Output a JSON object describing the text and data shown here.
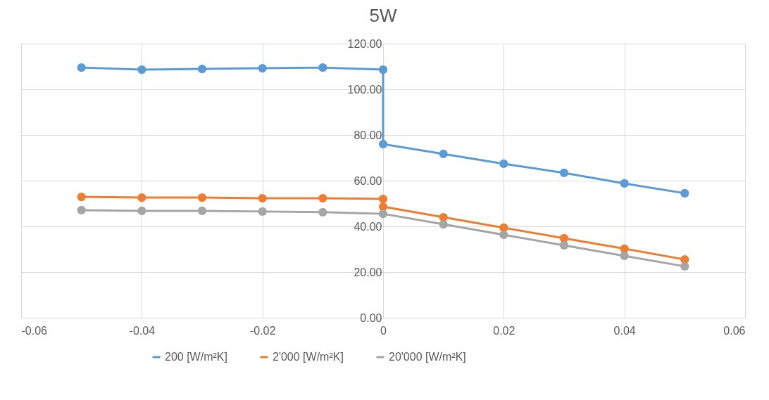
{
  "chart_data": {
    "type": "line",
    "title": "5W",
    "xlim": [
      -0.06,
      0.06
    ],
    "xticks": [
      -0.06,
      -0.04,
      -0.02,
      0,
      0.02,
      0.04,
      0.06
    ],
    "ylim": [
      0,
      120
    ],
    "yticks": [
      {
        "value": 0,
        "label": "0.00"
      },
      {
        "value": 20,
        "label": "20.00"
      },
      {
        "value": 40,
        "label": "40.00"
      },
      {
        "value": 60,
        "label": "60.00"
      },
      {
        "value": 80,
        "label": "80.00"
      },
      {
        "value": 100,
        "label": "100.00"
      },
      {
        "value": 120,
        "label": "120.00"
      }
    ],
    "grid": true,
    "legend": "bottom",
    "marker": "circle",
    "line_style": "solid",
    "series": [
      {
        "name": "200 [W/m²K]",
        "color": "#5b9bd5",
        "x": [
          -0.05,
          -0.04,
          -0.03,
          -0.02,
          -0.01,
          0,
          0,
          0.01,
          0.02,
          0.03,
          0.04,
          0.05
        ],
        "values": [
          109.5,
          108.6,
          108.9,
          109.2,
          109.5,
          108.6,
          76.0,
          71.7,
          67.4,
          63.4,
          58.8,
          54.5
        ]
      },
      {
        "name": "2'000 [W/m²K]",
        "color": "#ed7d31",
        "x": [
          -0.05,
          -0.04,
          -0.03,
          -0.02,
          -0.01,
          0,
          0,
          0.01,
          0.02,
          0.03,
          0.04,
          0.05
        ],
        "values": [
          52.9,
          52.6,
          52.6,
          52.3,
          52.3,
          52.0,
          48.6,
          44.0,
          39.4,
          34.8,
          30.2,
          25.5
        ]
      },
      {
        "name": "20'000 [W/m²K]",
        "color": "#a5a5a5",
        "x": [
          -0.05,
          -0.04,
          -0.03,
          -0.02,
          -0.01,
          0,
          0.01,
          0.02,
          0.03,
          0.04,
          0.05
        ],
        "values": [
          47.1,
          46.8,
          46.8,
          46.5,
          46.2,
          45.5,
          40.9,
          36.3,
          31.7,
          27.1,
          22.5
        ]
      }
    ]
  }
}
